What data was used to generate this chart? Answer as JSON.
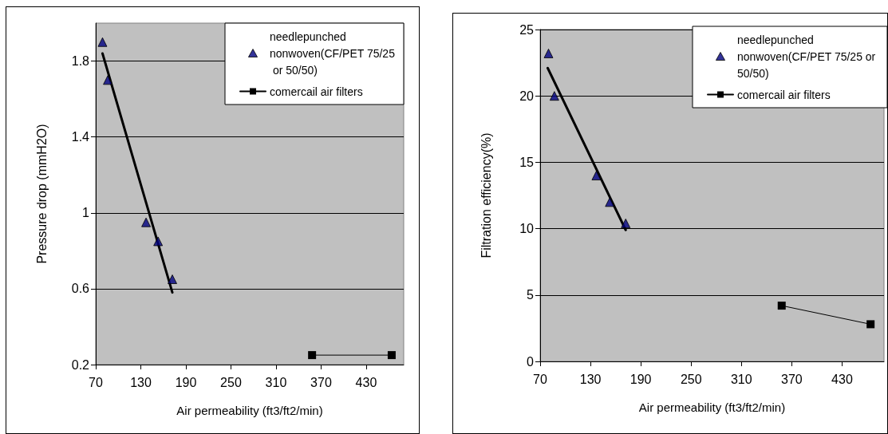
{
  "chart_data": [
    {
      "type": "scatter",
      "xlabel": "Air permeability (ft3/ft2/min)",
      "ylabel": "Pressure drop (mmH2O)",
      "xlim": [
        70,
        480
      ],
      "xticks": [
        70,
        130,
        190,
        250,
        310,
        370,
        430
      ],
      "ylim": [
        0.2,
        2.0
      ],
      "yticks": [
        0.2,
        0.6,
        1,
        1.4,
        1.8
      ],
      "grid": "y",
      "legend": "top right",
      "series": [
        {
          "name": "needlepunched nonwoven(CF/PET 75/25 or 50/50)",
          "type": "scatter",
          "marker": "triangle",
          "color": "#000080",
          "x": [
            79,
            86,
            137,
            153,
            172
          ],
          "values": [
            1.9,
            1.7,
            0.95,
            0.85,
            0.65
          ]
        },
        {
          "type": "line",
          "marker": "none",
          "color": "#000000",
          "x": [
            79,
            172
          ],
          "values": [
            1.84,
            0.58
          ]
        },
        {
          "name": "comercail air filters",
          "type": "line",
          "marker": "square",
          "color": "#000000",
          "x": [
            358,
            464
          ],
          "values": [
            0.25,
            0.25
          ]
        }
      ]
    },
    {
      "type": "scatter",
      "xlabel": "Air permeability (ft3/ft2/min)",
      "ylabel": "Filtration efficiency(%)",
      "xlim": [
        70,
        480
      ],
      "xticks": [
        70,
        130,
        190,
        250,
        310,
        370,
        430
      ],
      "ylim": [
        0,
        25
      ],
      "yticks": [
        0,
        5,
        10,
        15,
        20,
        25
      ],
      "grid": "y",
      "legend": "top right",
      "series": [
        {
          "name": "needlepunched nonwoven(CF/PET 75/25 or 50/50)",
          "type": "scatter",
          "marker": "triangle",
          "color": "#000080",
          "x": [
            80,
            87,
            137,
            153,
            172
          ],
          "values": [
            23.2,
            20.0,
            14.0,
            12.0,
            10.4
          ]
        },
        {
          "type": "line",
          "marker": "none",
          "color": "#000000",
          "x": [
            79,
            172
          ],
          "values": [
            22.1,
            9.9
          ]
        },
        {
          "name": "comercail air filters",
          "type": "line",
          "marker": "square",
          "color": "#000000",
          "x": [
            358,
            464
          ],
          "values": [
            4.2,
            2.8
          ]
        }
      ]
    }
  ]
}
